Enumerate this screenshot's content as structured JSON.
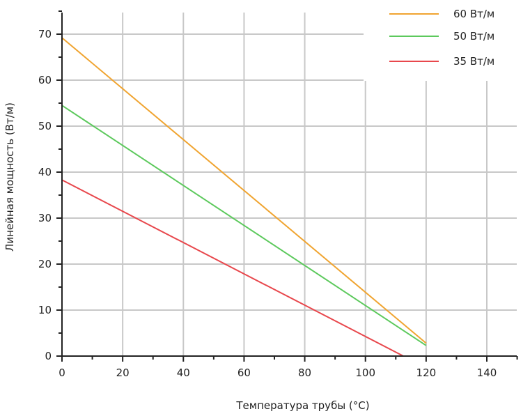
{
  "chart_data": {
    "type": "line",
    "xlabel": "Температура трубы (°C)",
    "ylabel": "Линейная мощность (Вт/м)",
    "xlim": [
      0,
      150
    ],
    "ylim": [
      0,
      75
    ],
    "x_ticks": [
      "0",
      "20",
      "40",
      "60",
      "80",
      "100",
      "120",
      "140"
    ],
    "y_ticks": [
      "0",
      "10",
      "20",
      "30",
      "40",
      "50",
      "60",
      "70"
    ],
    "grid": true,
    "legend_position": "top-right",
    "series": [
      {
        "name": "60 Вт/м",
        "color": "#f0a430",
        "points": [
          [
            0,
            69.2
          ],
          [
            120,
            2.8
          ]
        ]
      },
      {
        "name": "50 Вт/м",
        "color": "#5cc95c",
        "points": [
          [
            0,
            54.5
          ],
          [
            120,
            2.3
          ]
        ]
      },
      {
        "name": "35 Вт/м",
        "color": "#e8474c",
        "points": [
          [
            0,
            38.3
          ],
          [
            112.5,
            0
          ]
        ]
      }
    ]
  }
}
